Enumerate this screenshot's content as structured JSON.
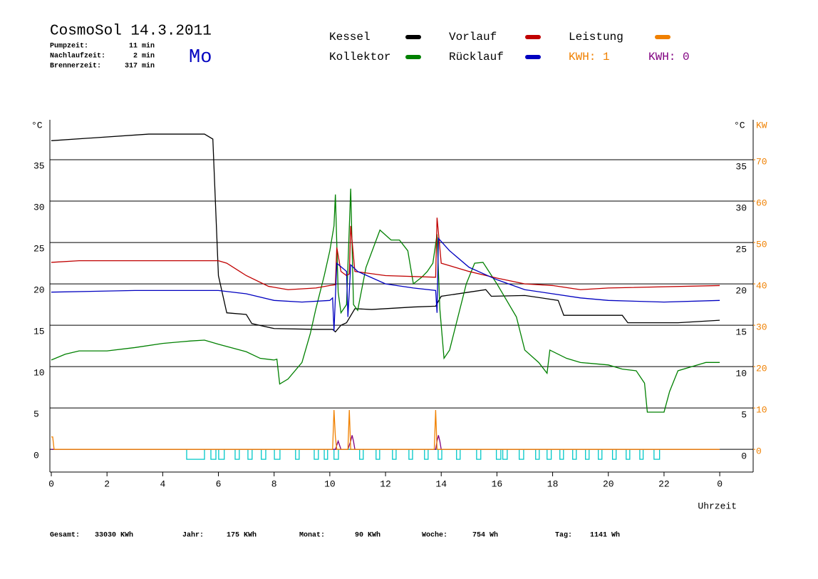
{
  "header": {
    "title": "CosmoSol 14.3.2011",
    "day": "Mo",
    "stats": [
      {
        "label": "Pumpzeit:",
        "value": "11 min"
      },
      {
        "label": "Nachlaufzeit:",
        "value": "2 min"
      },
      {
        "label": "Brennerzeit:",
        "value": "317 min"
      }
    ]
  },
  "footer": [
    {
      "label": "Gesamt:",
      "value": "33030 KWh"
    },
    {
      "label": "Jahr:",
      "value": "175 KWh"
    },
    {
      "label": "Monat:",
      "value": "90 KWh"
    },
    {
      "label": "Woche:",
      "value": "754 Wh"
    },
    {
      "label": "Tag:",
      "value": "1141 Wh"
    }
  ],
  "chart_data": {
    "type": "line",
    "y_label": "°C",
    "y_label_right": "°C",
    "y2_label": "KW",
    "x_label": "Uhrzeit",
    "kwh_labels": [
      {
        "text": "KWH: 1",
        "color": "#f08000"
      },
      {
        "text": "KWH: 0",
        "color": "#800080"
      }
    ],
    "xlim": [
      0,
      25.2
    ],
    "xticks": [
      0,
      2,
      4,
      6,
      8,
      10,
      12,
      14,
      16,
      18,
      20,
      22,
      {
        "value": 24,
        "label": "0"
      }
    ],
    "ylim": [
      -3,
      40
    ],
    "yticks": [
      0,
      5,
      10,
      15,
      20,
      25,
      30,
      35
    ],
    "y2lim": [
      -6,
      80
    ],
    "y2ticks": [
      0,
      10,
      20,
      30,
      40,
      50,
      60,
      70
    ],
    "grid": true,
    "series": [
      {
        "name": "Kessel",
        "color": "#000000",
        "x": [
          0,
          3.5,
          5.5,
          5.8,
          6.0,
          6.3,
          7.0,
          7.2,
          8.0,
          9.5,
          10.1,
          10.2,
          10.4,
          10.6,
          10.9,
          11.5,
          13.0,
          13.8,
          14.0,
          15.0,
          15.6,
          15.8,
          17.0,
          18.2,
          18.4,
          20.5,
          20.7,
          22.5,
          24.0
        ],
        "values": [
          37.3,
          38.1,
          38.1,
          37.5,
          21.0,
          16.5,
          16.3,
          15.2,
          14.6,
          14.5,
          14.5,
          14.2,
          15.0,
          15.3,
          17.0,
          16.9,
          17.2,
          17.3,
          18.5,
          19.0,
          19.3,
          18.5,
          18.6,
          18.0,
          16.2,
          16.2,
          15.3,
          15.3,
          15.6
        ]
      },
      {
        "name": "Kollektor",
        "color": "#008000",
        "x": [
          0,
          0.5,
          1,
          2,
          3,
          4,
          5,
          5.5,
          6,
          7,
          7.5,
          8,
          8.1,
          8.2,
          8.5,
          9,
          9.3,
          9.5,
          9.8,
          10,
          10.15,
          10.2,
          10.3,
          10.4,
          10.6,
          10.75,
          10.85,
          11,
          11.3,
          11.8,
          12.2,
          12.5,
          12.8,
          13,
          13.3,
          13.5,
          13.7,
          13.85,
          13.95,
          14.1,
          14.3,
          14.6,
          14.9,
          15.2,
          15.5,
          16,
          16.7,
          17,
          17.5,
          17.8,
          17.9,
          18.5,
          19,
          20,
          20.5,
          21,
          21.3,
          21.4,
          22,
          22.2,
          22.5,
          23,
          23.5,
          24
        ],
        "values": [
          10.8,
          11.5,
          11.9,
          11.9,
          12.3,
          12.8,
          13.1,
          13.2,
          12.7,
          11.8,
          11.0,
          10.8,
          10.9,
          7.9,
          8.5,
          10.5,
          14.0,
          17.0,
          21.0,
          24.0,
          27.0,
          30.8,
          19.0,
          16.5,
          17.5,
          31.5,
          17.5,
          16.8,
          22.0,
          26.5,
          25.3,
          25.3,
          24.0,
          20.0,
          20.8,
          21.5,
          22.5,
          26.0,
          17.0,
          11.0,
          12.0,
          16.0,
          20.0,
          22.5,
          22.6,
          20.0,
          16.0,
          12.0,
          10.5,
          9.2,
          12.0,
          11.0,
          10.5,
          10.2,
          9.7,
          9.5,
          8.0,
          4.5,
          4.5,
          7.0,
          9.5,
          10.0,
          10.5,
          10.5
        ]
      },
      {
        "name": "Vorlauf",
        "color": "#c00000",
        "x": [
          0,
          1,
          6,
          6.3,
          7,
          7.8,
          8.5,
          9.5,
          10,
          10.2,
          10.25,
          10.4,
          10.6,
          10.7,
          10.75,
          10.9,
          12,
          13.8,
          13.85,
          14,
          15,
          16,
          17,
          18,
          19,
          20,
          24
        ],
        "values": [
          22.6,
          22.8,
          22.8,
          22.5,
          21.0,
          19.7,
          19.3,
          19.5,
          19.8,
          19.9,
          24.4,
          21.5,
          21.0,
          21.2,
          27.0,
          21.5,
          21.0,
          20.8,
          28.0,
          22.5,
          21.5,
          20.7,
          20.0,
          19.8,
          19.3,
          19.5,
          19.8
        ]
      },
      {
        "name": "Rücklauf",
        "color": "#0000c0",
        "x": [
          0,
          3,
          6,
          7,
          8,
          9,
          10,
          10.1,
          10.15,
          10.25,
          10.6,
          10.65,
          10.75,
          11,
          12,
          13,
          13.8,
          13.85,
          13.9,
          14.3,
          15,
          16,
          17,
          18,
          19,
          20,
          22,
          24
        ],
        "values": [
          19.0,
          19.2,
          19.2,
          18.8,
          18.0,
          17.8,
          18.0,
          18.3,
          14.3,
          22.5,
          21.5,
          16.0,
          22.3,
          21.5,
          20.0,
          19.5,
          19.2,
          16.5,
          25.5,
          24.0,
          22.0,
          20.5,
          19.3,
          18.8,
          18.3,
          18.0,
          17.8,
          18.0
        ]
      },
      {
        "name": "Leistung",
        "color": "#f08000",
        "axis": "y2",
        "x": [
          0,
          0.05,
          0.1,
          0.15,
          10.1,
          10.15,
          10.2,
          10.25,
          10.65,
          10.7,
          10.75,
          13.75,
          13.8,
          13.85,
          24
        ],
        "values": [
          3,
          3,
          0,
          0,
          0,
          9.5,
          3,
          0,
          0,
          9.5,
          0,
          0,
          9.5,
          0,
          0
        ]
      },
      {
        "color": "#800080",
        "axis": "y2",
        "x": [
          0,
          10.2,
          10.25,
          10.3,
          10.35,
          10.4,
          10.65,
          10.75,
          10.8,
          10.85,
          10.9,
          13.8,
          13.85,
          13.9,
          13.95,
          14.0,
          24
        ],
        "values": [
          0,
          0,
          1,
          2,
          1,
          0,
          0,
          2,
          3.4,
          2,
          0,
          0,
          2,
          3.4,
          2,
          0,
          0
        ]
      },
      {
        "color": "#00c8c8",
        "step": true,
        "x": [
          0,
          4.86,
          5.5,
          5.73,
          5.91,
          6.01,
          6.21,
          6.6,
          6.75,
          7.06,
          7.21,
          7.54,
          7.7,
          8.01,
          8.21,
          8.77,
          8.9,
          9.44,
          9.59,
          9.8,
          9.92,
          10.15,
          10.31,
          11.07,
          11.2,
          11.66,
          11.79,
          12.25,
          12.38,
          12.84,
          12.97,
          13.4,
          13.53,
          13.89,
          14.02,
          14.55,
          14.68,
          15.27,
          15.42,
          15.98,
          16.14,
          16.21,
          16.37,
          16.8,
          16.96,
          17.39,
          17.52,
          17.8,
          17.95,
          18.26,
          18.39,
          18.72,
          18.85,
          19.18,
          19.31,
          19.64,
          19.77,
          20.15,
          20.28,
          20.64,
          20.77,
          21.13,
          21.25,
          21.64,
          21.84,
          24
        ],
        "values": [
          0,
          -1.2,
          0,
          -1.2,
          0,
          -1.2,
          0,
          -1.2,
          0,
          -1.2,
          0,
          -1.2,
          0,
          -1.2,
          0,
          -1.2,
          0,
          -1.2,
          0,
          -1.2,
          0,
          -1.2,
          0,
          -1.2,
          0,
          -1.2,
          0,
          -1.2,
          0,
          -1.2,
          0,
          -1.2,
          0,
          -1.2,
          0,
          -1.2,
          0,
          -1.2,
          0,
          -1.2,
          0,
          -1.2,
          0,
          -1.2,
          0,
          -1.2,
          0,
          -1.2,
          0,
          -1.2,
          0,
          -1.2,
          0,
          -1.2,
          0,
          -1.2,
          0,
          -1.2,
          0,
          -1.2,
          0,
          -1.2,
          0,
          -1.2,
          0,
          0
        ]
      }
    ]
  }
}
